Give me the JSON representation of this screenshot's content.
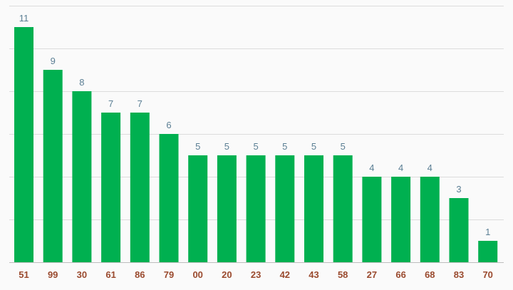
{
  "chart_data": {
    "type": "bar",
    "categories": [
      "51",
      "99",
      "30",
      "61",
      "86",
      "79",
      "00",
      "20",
      "23",
      "42",
      "43",
      "58",
      "27",
      "66",
      "68",
      "83",
      "70"
    ],
    "values": [
      11,
      9,
      8,
      7,
      7,
      6,
      5,
      5,
      5,
      5,
      5,
      5,
      4,
      4,
      4,
      3,
      1
    ],
    "ylim": [
      0,
      12
    ],
    "grid": true,
    "legend": "none",
    "data_labels": true,
    "colors": {
      "bar": "#00b050",
      "data_label": "#5b7f94",
      "category_label": "#9a4a2e",
      "background": "#fafafa",
      "grid": "#dcdcdc"
    }
  }
}
